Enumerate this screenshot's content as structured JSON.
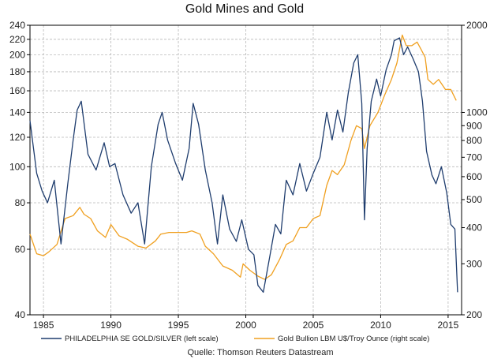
{
  "chart_data": {
    "type": "line",
    "title": "Gold Mines and Gold",
    "source": "Quelle: Thomson Reuters Datastream",
    "x_ticks": [
      "1985",
      "1990",
      "1995",
      "2000",
      "2005",
      "2010",
      "2015"
    ],
    "x_tick_years": [
      1985,
      1990,
      1995,
      2000,
      2005,
      2010,
      2015
    ],
    "xlim": [
      1984.0,
      2016.0
    ],
    "left_axis": {
      "scale": "log",
      "ylim": [
        40,
        240
      ],
      "ticks": [
        40,
        60,
        80,
        100,
        120,
        140,
        160,
        180,
        200,
        220,
        240
      ],
      "tick_labels": [
        "40",
        "60",
        "80",
        "100",
        "120",
        "140",
        "160",
        "180",
        "200",
        "220",
        "240"
      ]
    },
    "right_axis": {
      "scale": "log",
      "ylim": [
        200,
        2000
      ],
      "ticks": [
        200,
        300,
        400,
        500,
        600,
        700,
        800,
        900,
        1000,
        2000
      ],
      "tick_labels": [
        "200",
        "300",
        "400",
        "500",
        "600",
        "700",
        "800",
        "900",
        "1000",
        "2000"
      ]
    },
    "series": [
      {
        "name": "PHILADELPHIA SE GOLD/SILVER (left scale)",
        "axis": "left",
        "color": "#1f3d6e",
        "x": [
          1984.0,
          1984.5,
          1984.9,
          1985.3,
          1985.8,
          1986.3,
          1986.8,
          1987.2,
          1987.5,
          1987.8,
          1988.3,
          1988.9,
          1989.5,
          1989.9,
          1990.3,
          1990.9,
          1991.5,
          1992.0,
          1992.5,
          1993.0,
          1993.5,
          1993.8,
          1994.2,
          1994.8,
          1995.3,
          1995.8,
          1996.1,
          1996.5,
          1997.0,
          1997.5,
          1997.9,
          1998.3,
          1998.8,
          1999.3,
          1999.7,
          2000.2,
          2000.6,
          2000.9,
          2001.3,
          2001.8,
          2002.2,
          2002.6,
          2003.0,
          2003.5,
          2004.0,
          2004.5,
          2005.0,
          2005.5,
          2006.0,
          2006.4,
          2006.8,
          2007.2,
          2007.6,
          2008.0,
          2008.3,
          2008.6,
          2008.8,
          2009.0,
          2009.3,
          2009.7,
          2010.0,
          2010.4,
          2010.8,
          2011.0,
          2011.4,
          2011.7,
          2012.0,
          2012.4,
          2012.8,
          2013.1,
          2013.4,
          2013.8,
          2014.1,
          2014.5,
          2014.9,
          2015.2,
          2015.5,
          2015.7
        ],
        "values": [
          133,
          96,
          86,
          80,
          92,
          62,
          90,
          118,
          142,
          150,
          108,
          98,
          116,
          100,
          102,
          84,
          75,
          80,
          62,
          100,
          130,
          140,
          118,
          102,
          92,
          112,
          148,
          130,
          98,
          80,
          62,
          84,
          68,
          63,
          72,
          60,
          58,
          48,
          46,
          58,
          70,
          66,
          92,
          84,
          102,
          86,
          96,
          106,
          140,
          118,
          142,
          124,
          158,
          190,
          200,
          148,
          72,
          112,
          150,
          172,
          155,
          182,
          200,
          218,
          222,
          200,
          210,
          195,
          180,
          150,
          110,
          95,
          90,
          100,
          85,
          70,
          68,
          46
        ]
      },
      {
        "name": "Gold Bullion LBM U$/Troy Ounce (right scale)",
        "axis": "right",
        "color": "#f0a020",
        "x": [
          1984.0,
          1984.5,
          1985.0,
          1985.4,
          1986.0,
          1986.6,
          1987.2,
          1987.7,
          1988.0,
          1988.5,
          1989.0,
          1989.6,
          1990.0,
          1990.6,
          1991.2,
          1992.0,
          1992.6,
          1993.3,
          1993.7,
          1994.3,
          1995.0,
          1995.6,
          1996.0,
          1996.6,
          1997.0,
          1997.6,
          1998.3,
          1999.0,
          1999.6,
          1999.8,
          2000.3,
          2000.9,
          2001.4,
          2001.9,
          2002.5,
          2003.0,
          2003.5,
          2004.0,
          2004.5,
          2005.0,
          2005.5,
          2006.0,
          2006.4,
          2006.8,
          2007.3,
          2007.8,
          2008.2,
          2008.6,
          2008.8,
          2009.2,
          2009.8,
          2010.3,
          2010.8,
          2011.2,
          2011.6,
          2011.9,
          2012.3,
          2012.7,
          2013.0,
          2013.3,
          2013.5,
          2013.9,
          2014.3,
          2014.8,
          2015.2,
          2015.6
        ],
        "values": [
          380,
          325,
          320,
          330,
          350,
          430,
          440,
          470,
          445,
          430,
          390,
          370,
          410,
          375,
          365,
          345,
          340,
          360,
          380,
          385,
          385,
          385,
          390,
          380,
          345,
          325,
          295,
          285,
          270,
          300,
          285,
          272,
          265,
          275,
          310,
          350,
          360,
          400,
          400,
          430,
          440,
          560,
          630,
          610,
          660,
          800,
          900,
          880,
          750,
          900,
          1000,
          1150,
          1300,
          1480,
          1850,
          1700,
          1700,
          1750,
          1650,
          1550,
          1300,
          1250,
          1300,
          1200,
          1200,
          1100
        ]
      }
    ]
  }
}
